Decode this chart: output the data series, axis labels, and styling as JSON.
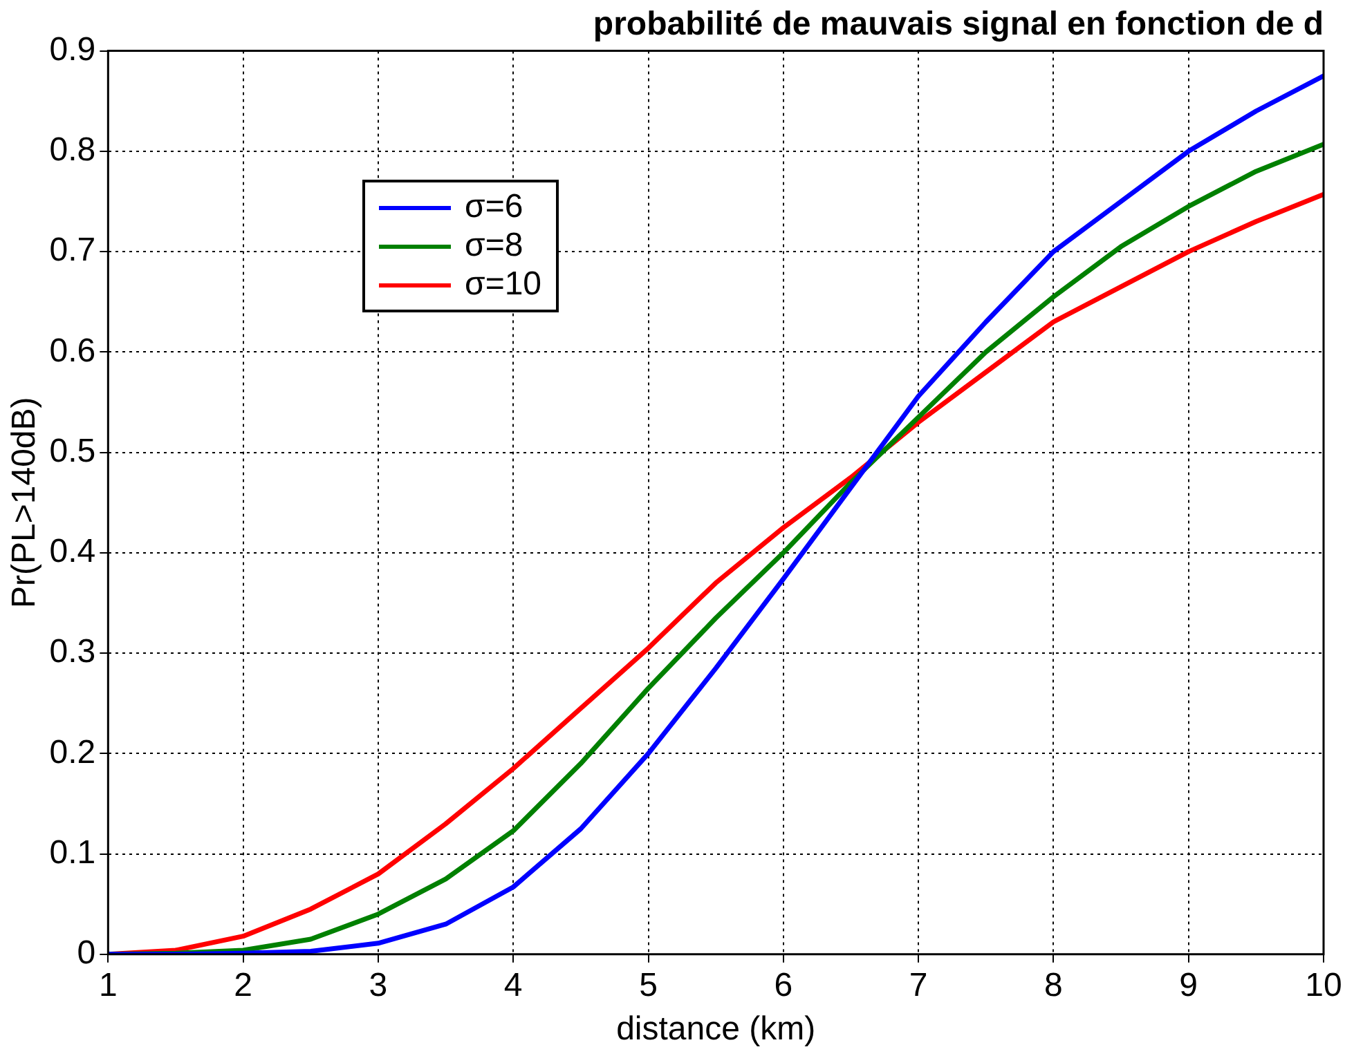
{
  "chart_data": {
    "type": "line",
    "title": "probabilité de mauvais signal en fonction de d",
    "xlabel": "distance (km)",
    "ylabel": "Pr(PL>140dB)",
    "x": [
      1,
      1.5,
      2,
      2.5,
      3,
      3.5,
      4,
      4.5,
      5,
      5.5,
      6,
      6.5,
      7,
      7.5,
      8,
      8.5,
      9,
      9.5,
      10
    ],
    "series": [
      {
        "name": "σ=6",
        "color": "#0000ff",
        "values": [
          0,
          0,
          0.001,
          0.003,
          0.011,
          0.03,
          0.067,
          0.125,
          0.2,
          0.285,
          0.374,
          0.465,
          0.556,
          0.63,
          0.7,
          0.75,
          0.8,
          0.84,
          0.875
        ]
      },
      {
        "name": "σ=8",
        "color": "#008000",
        "values": [
          0,
          0.001,
          0.004,
          0.015,
          0.04,
          0.075,
          0.123,
          0.19,
          0.265,
          0.335,
          0.4,
          0.47,
          0.535,
          0.6,
          0.655,
          0.705,
          0.745,
          0.78,
          0.807
        ]
      },
      {
        "name": "σ=10",
        "color": "#ff0000",
        "values": [
          0,
          0.004,
          0.018,
          0.045,
          0.08,
          0.13,
          0.185,
          0.245,
          0.305,
          0.37,
          0.425,
          0.475,
          0.53,
          0.58,
          0.63,
          0.665,
          0.7,
          0.73,
          0.757
        ]
      }
    ],
    "xlim": [
      1,
      10
    ],
    "xticks": [
      1,
      2,
      3,
      4,
      5,
      6,
      7,
      8,
      9,
      10
    ],
    "ylim": [
      0,
      0.9
    ],
    "yticks": [
      0,
      0.1,
      0.2,
      0.3,
      0.4,
      0.5,
      0.6,
      0.7,
      0.8,
      0.9
    ],
    "grid": true,
    "legend": "top left",
    "marker": "none",
    "line_style": "solid"
  }
}
